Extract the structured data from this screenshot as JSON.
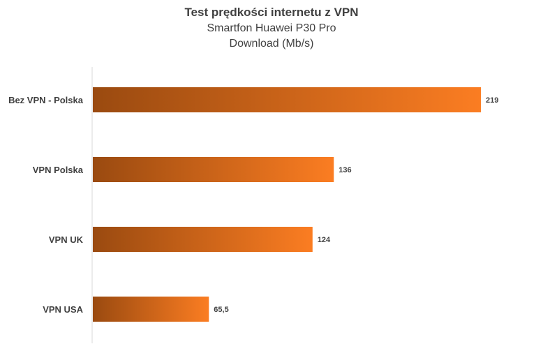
{
  "chart_data": {
    "type": "bar",
    "orientation": "horizontal",
    "title": "Test prędkości internetu z VPN",
    "subtitle": "Smartfon Huawei P30 Pro",
    "subtitle2": "Download (Mb/s)",
    "categories": [
      "Bez VPN - Polska",
      "VPN Polska",
      "VPN UK",
      "VPN USA"
    ],
    "values": [
      219,
      136,
      124,
      65.5
    ],
    "data_labels": [
      "219",
      "136",
      "124",
      "65,5"
    ],
    "xlim": [
      0,
      219
    ],
    "grid": false,
    "legend": "none",
    "colors": {
      "bar_start": "#9a4a10",
      "bar_end": "#fb7d22",
      "axis": "#d9d9d9",
      "text": "#404040"
    }
  }
}
